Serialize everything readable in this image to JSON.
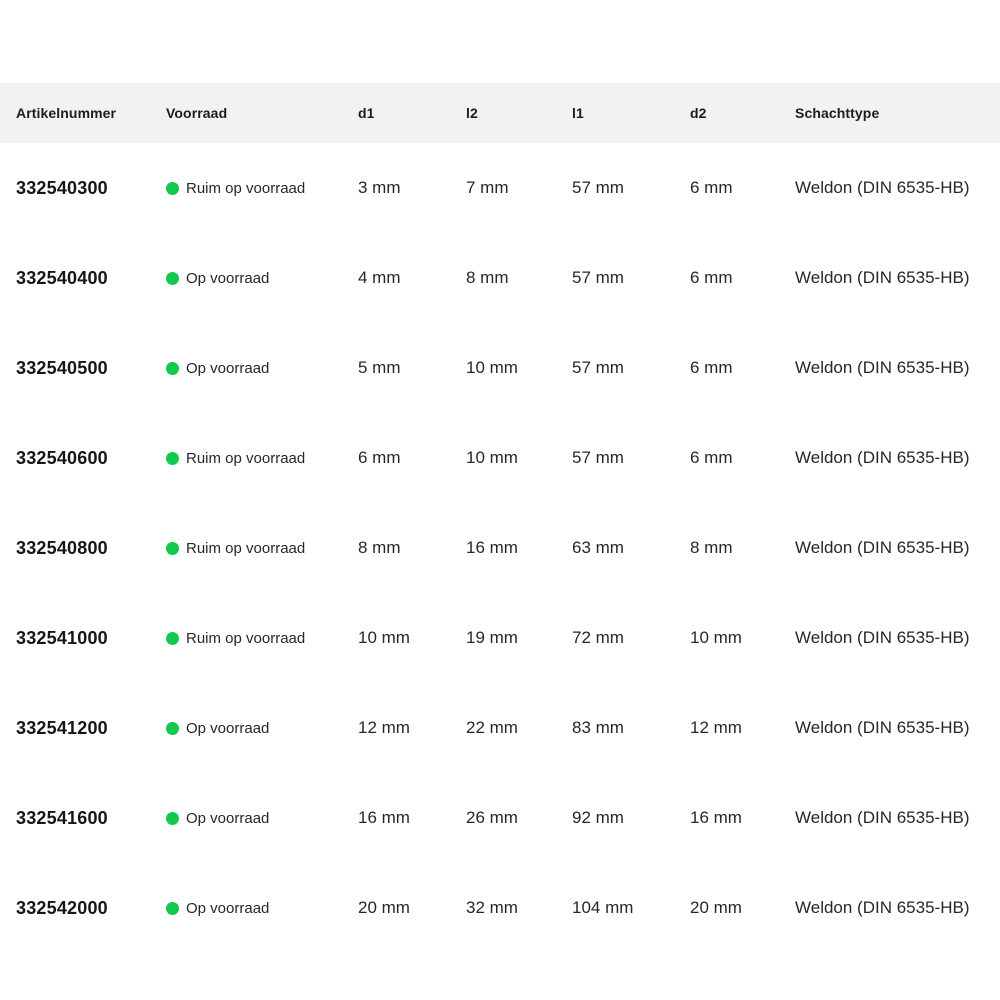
{
  "colors": {
    "header_bg": "#f2f2f2",
    "header_text": "#1b1b24",
    "article_text": "#15151c",
    "data_text": "#26262e",
    "stock_dot": "#12c94f",
    "page_bg": "#ffffff"
  },
  "icons": {
    "stock_indicator": "green-dot-icon"
  },
  "table": {
    "columns": [
      {
        "key": "artikelnummer",
        "label": "Artikelnummer"
      },
      {
        "key": "voorraad",
        "label": "Voorraad"
      },
      {
        "key": "d1",
        "label": "d1"
      },
      {
        "key": "l2",
        "label": "l2"
      },
      {
        "key": "l1",
        "label": "l1"
      },
      {
        "key": "d2",
        "label": "d2"
      },
      {
        "key": "schachttype",
        "label": "Schachttype"
      }
    ],
    "rows": [
      {
        "artikelnummer": "332540300",
        "voorraad": "Ruim op voorraad",
        "d1": "3 mm",
        "l2": "7 mm",
        "l1": "57 mm",
        "d2": "6 mm",
        "schachttype": "Weldon (DIN 6535-HB)"
      },
      {
        "artikelnummer": "332540400",
        "voorraad": "Op voorraad",
        "d1": "4 mm",
        "l2": "8 mm",
        "l1": "57 mm",
        "d2": "6 mm",
        "schachttype": "Weldon (DIN 6535-HB)"
      },
      {
        "artikelnummer": "332540500",
        "voorraad": "Op voorraad",
        "d1": "5 mm",
        "l2": "10 mm",
        "l1": "57 mm",
        "d2": "6 mm",
        "schachttype": "Weldon (DIN 6535-HB)"
      },
      {
        "artikelnummer": "332540600",
        "voorraad": "Ruim op voorraad",
        "d1": "6 mm",
        "l2": "10 mm",
        "l1": "57 mm",
        "d2": "6 mm",
        "schachttype": "Weldon (DIN 6535-HB)"
      },
      {
        "artikelnummer": "332540800",
        "voorraad": "Ruim op voorraad",
        "d1": "8 mm",
        "l2": "16 mm",
        "l1": "63 mm",
        "d2": "8 mm",
        "schachttype": "Weldon (DIN 6535-HB)"
      },
      {
        "artikelnummer": "332541000",
        "voorraad": "Ruim op voorraad",
        "d1": "10 mm",
        "l2": "19 mm",
        "l1": "72 mm",
        "d2": "10 mm",
        "schachttype": "Weldon (DIN 6535-HB)"
      },
      {
        "artikelnummer": "332541200",
        "voorraad": "Op voorraad",
        "d1": "12 mm",
        "l2": "22 mm",
        "l1": "83 mm",
        "d2": "12 mm",
        "schachttype": "Weldon (DIN 6535-HB)"
      },
      {
        "artikelnummer": "332541600",
        "voorraad": "Op voorraad",
        "d1": "16 mm",
        "l2": "26 mm",
        "l1": "92 mm",
        "d2": "16 mm",
        "schachttype": "Weldon (DIN 6535-HB)"
      },
      {
        "artikelnummer": "332542000",
        "voorraad": "Op voorraad",
        "d1": "20 mm",
        "l2": "32 mm",
        "l1": "104 mm",
        "d2": "20 mm",
        "schachttype": "Weldon (DIN 6535-HB)"
      }
    ]
  }
}
